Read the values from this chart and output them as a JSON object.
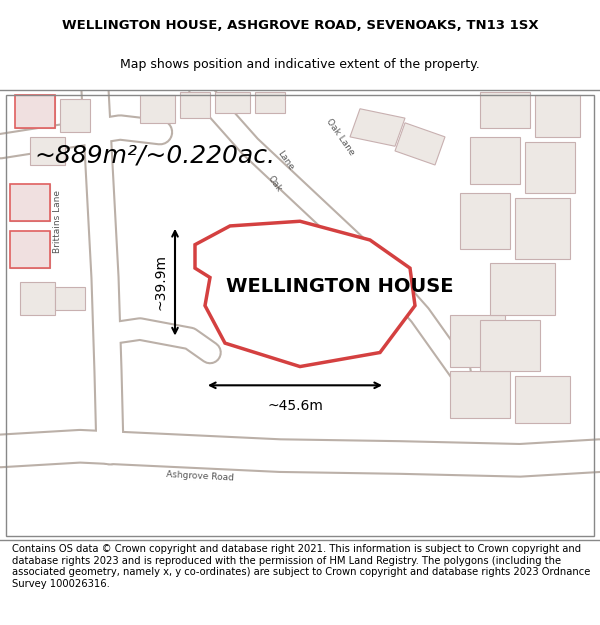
{
  "title_line1": "WELLINGTON HOUSE, ASHGROVE ROAD, SEVENOAKS, TN13 1SX",
  "title_line2": "Map shows position and indicative extent of the property.",
  "property_label": "WELLINGTON HOUSE",
  "area_text": "~889m²/~0.220ac.",
  "dim_width": "~45.6m",
  "dim_height": "~39.9m",
  "footer_text": "Contains OS data © Crown copyright and database right 2021. This information is subject to Crown copyright and database rights 2023 and is reproduced with the permission of HM Land Registry. The polygons (including the associated geometry, namely x, y co-ordinates) are subject to Crown copyright and database rights 2023 Ordnance Survey 100026316.",
  "bg_color": "#f0ede8",
  "map_bg": "#f5f2ee",
  "road_color": "#ffffff",
  "building_outline_color": "#e8a0a0",
  "highlight_polygon_color": "#e8a0a0",
  "highlight_polygon_fill": "#ffffff",
  "title_fontsize": 9.5,
  "subtitle_fontsize": 9,
  "label_fontsize": 14,
  "area_fontsize": 18,
  "footer_fontsize": 7.2
}
